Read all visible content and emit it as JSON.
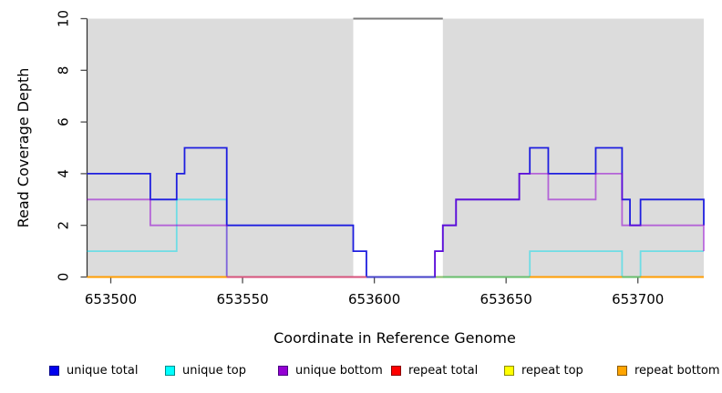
{
  "figure": {
    "background": "#ffffff",
    "colors": {
      "highlight_band": "#dcdcdc",
      "gap_top_line": "#7a7a7a",
      "axis_line": "#2a2a2a",
      "tick": "#4d4d4d"
    }
  },
  "chart_data": {
    "type": "line",
    "subtype": "step-post-coverage",
    "title": "",
    "xlabel": "Coordinate in Reference Genome",
    "ylabel": "Read Coverage Depth",
    "xlim": [
      653491,
      653725
    ],
    "ylim": [
      0,
      10
    ],
    "xticks": [
      653500,
      653550,
      653600,
      653650,
      653700
    ],
    "yticks": [
      0,
      2,
      4,
      6,
      8,
      10
    ],
    "grid": false,
    "legend_position": "bottom",
    "highlight_regions": [
      [
        653491,
        653592
      ],
      [
        653626,
        653725
      ]
    ],
    "gap_region": [
      653592,
      653626
    ],
    "series": [
      {
        "name": "repeat total",
        "color": "#FF0000",
        "opacity": 1,
        "breakpoints": [
          [
            653491,
            0
          ]
        ],
        "end_value": null
      },
      {
        "name": "repeat top",
        "color": "#FFFF00",
        "opacity": 1,
        "breakpoints": [
          [
            653491,
            0
          ]
        ],
        "end_value": null
      },
      {
        "name": "repeat bottom",
        "color": "#FF9C00",
        "opacity": 1,
        "breakpoints": [
          [
            653491,
            0
          ]
        ],
        "end_value": null
      },
      {
        "name": "unique top",
        "color": "#00DDEE",
        "opacity": 0.5,
        "breakpoints": [
          [
            653491,
            1
          ],
          [
            653525,
            3
          ],
          [
            653544,
            0
          ],
          [
            653659,
            1
          ],
          [
            653694,
            0
          ],
          [
            653701,
            1
          ]
        ],
        "end_value": null
      },
      {
        "name": "unique total",
        "color": "#1E1EDF",
        "opacity": 1,
        "breakpoints": [
          [
            653491,
            4
          ],
          [
            653515,
            3
          ],
          [
            653525,
            4
          ],
          [
            653528,
            5
          ],
          [
            653544,
            2
          ],
          [
            653592,
            1
          ],
          [
            653597,
            0
          ],
          [
            653623,
            1
          ],
          [
            653626,
            2
          ],
          [
            653631,
            3
          ],
          [
            653655,
            4
          ],
          [
            653659,
            5
          ],
          [
            653666,
            4
          ],
          [
            653684,
            5
          ],
          [
            653694,
            3
          ],
          [
            653697,
            2
          ],
          [
            653701,
            3
          ]
        ],
        "end_value": 2
      },
      {
        "name": "unique bottom",
        "color": "#9400D3",
        "opacity": 0.55,
        "breakpoints": [
          [
            653491,
            3
          ],
          [
            653515,
            2
          ],
          [
            653544,
            0
          ],
          [
            653623,
            1
          ],
          [
            653626,
            2
          ],
          [
            653631,
            3
          ],
          [
            653655,
            4
          ],
          [
            653666,
            3
          ],
          [
            653684,
            4
          ],
          [
            653694,
            2
          ]
        ],
        "end_value": 1
      }
    ],
    "zero_line_segments": [
      {
        "from": 653491,
        "to": 653544,
        "color": "#FF9C00"
      },
      {
        "from": 653544,
        "to": 653597,
        "color": "#D6527B"
      },
      {
        "from": 653597,
        "to": 653623,
        "color": "#4340C8"
      },
      {
        "from": 653626,
        "to": 653659,
        "color": "#67BE6B"
      },
      {
        "from": 653659,
        "to": 653694,
        "color": "#FF9C00"
      },
      {
        "from": 653694,
        "to": 653701,
        "color": "#67BE6B"
      },
      {
        "from": 653701,
        "to": 653725,
        "color": "#FF9C00"
      }
    ]
  },
  "legend": {
    "items": [
      {
        "label": "unique total",
        "fill": "#0000EE",
        "border": "#00008B"
      },
      {
        "label": "unique top",
        "fill": "#00FFFF",
        "border": "#008B8B"
      },
      {
        "label": "unique bottom",
        "fill": "#9400D3",
        "border": "#4B0082"
      },
      {
        "label": "repeat total",
        "fill": "#FF0000",
        "border": "#8B0000"
      },
      {
        "label": "repeat top",
        "fill": "#FFFF00",
        "border": "#8B8B00"
      },
      {
        "label": "repeat bottom",
        "fill": "#FFA500",
        "border": "#8B5A00"
      }
    ]
  }
}
